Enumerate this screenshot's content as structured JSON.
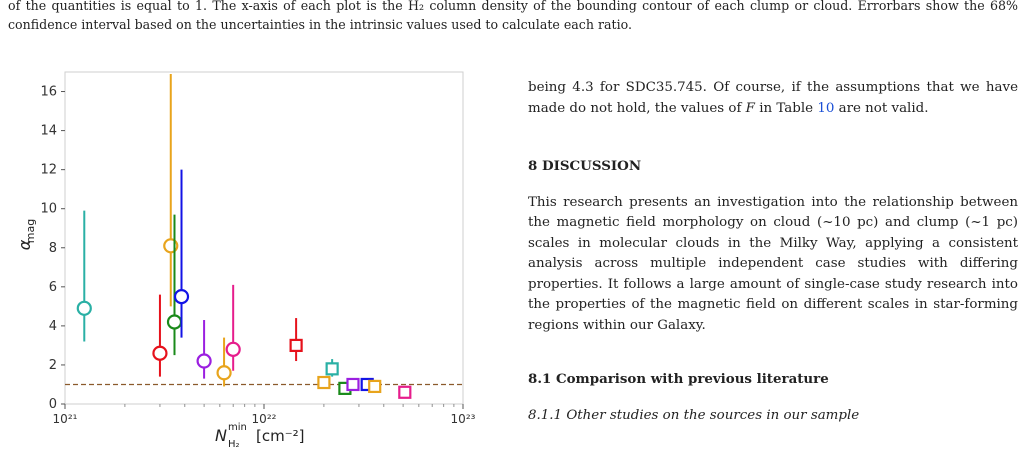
{
  "caption": {
    "text": "of the quantities is equal to 1. The x-axis of each plot is the H₂ column density of the bounding contour of each clump or cloud. Errorbars show the 68% confidence interval based on the uncertainties in the intrinsic values used to calculate each ratio."
  },
  "chart_data": {
    "type": "scatter",
    "xlabel": "N^min_H2 [cm^-2]",
    "ylabel": "α_mag",
    "xscale": "log",
    "xlim": [
      1e+21,
      1e+23
    ],
    "ylim": [
      0,
      17
    ],
    "x_tick_values": [
      1e+21,
      1e+22,
      1e+23
    ],
    "x_ticks": [
      "10²¹",
      "10²²",
      "10²³"
    ],
    "y_ticks": [
      "0",
      "2",
      "4",
      "6",
      "8",
      "10",
      "12",
      "14",
      "16"
    ],
    "reference_line": {
      "y": 1,
      "style": "dashed",
      "color": "#8b5a2b"
    },
    "points": [
      {
        "x": 1.25e+21,
        "y": 4.9,
        "ylo": 3.2,
        "yhi": 9.9,
        "marker": "circle",
        "color": "#2ab0a5"
      },
      {
        "x": 3e+21,
        "y": 2.6,
        "ylo": 1.4,
        "yhi": 5.6,
        "marker": "circle",
        "color": "#e6111b"
      },
      {
        "x": 3.4e+21,
        "y": 8.1,
        "ylo": 5.0,
        "yhi": 16.9,
        "marker": "circle",
        "color": "#e8a41c"
      },
      {
        "x": 3.55e+21,
        "y": 4.2,
        "ylo": 2.5,
        "yhi": 9.7,
        "marker": "circle",
        "color": "#1a8a1a"
      },
      {
        "x": 3.85e+21,
        "y": 5.5,
        "ylo": 3.4,
        "yhi": 12.0,
        "marker": "circle",
        "color": "#1313e6"
      },
      {
        "x": 5e+21,
        "y": 2.2,
        "ylo": 1.3,
        "yhi": 4.3,
        "marker": "circle",
        "color": "#9b1fe0"
      },
      {
        "x": 6.3e+21,
        "y": 1.6,
        "ylo": 0.9,
        "yhi": 3.4,
        "marker": "circle",
        "color": "#e8a41c"
      },
      {
        "x": 7e+21,
        "y": 2.8,
        "ylo": 1.7,
        "yhi": 6.1,
        "marker": "circle",
        "color": "#e61d8c"
      },
      {
        "x": 1.45e+22,
        "y": 3.0,
        "ylo": 2.2,
        "yhi": 4.4,
        "marker": "square",
        "color": "#e6111b"
      },
      {
        "x": 2e+22,
        "y": 1.1,
        "ylo": 0.9,
        "yhi": 1.4,
        "marker": "square",
        "color": "#e8a41c"
      },
      {
        "x": 2.2e+22,
        "y": 1.8,
        "ylo": 1.4,
        "yhi": 2.3,
        "marker": "square",
        "color": "#2ab0a5"
      },
      {
        "x": 2.55e+22,
        "y": 0.8,
        "ylo": 0.6,
        "yhi": 1.0,
        "marker": "square",
        "color": "#1a8a1a"
      },
      {
        "x": 2.8e+22,
        "y": 1.0,
        "ylo": 0.8,
        "yhi": 1.2,
        "marker": "square",
        "color": "#9b1fe0"
      },
      {
        "x": 3.3e+22,
        "y": 1.0,
        "ylo": 0.8,
        "yhi": 1.2,
        "marker": "square",
        "color": "#1313e6"
      },
      {
        "x": 3.6e+22,
        "y": 0.9,
        "ylo": 0.7,
        "yhi": 1.1,
        "marker": "square",
        "color": "#e8a41c"
      },
      {
        "x": 5.1e+22,
        "y": 0.6,
        "ylo": 0.5,
        "yhi": 0.8,
        "marker": "square",
        "color": "#e61d8c"
      }
    ]
  },
  "body": {
    "para1_a": "being 4.3 for SDC35.745. Of course, if the assumptions that we have made do not hold, the values of ",
    "para1_var": "F",
    "para1_b": " in Table ",
    "para1_ref": "10",
    "para1_c": " are not valid.",
    "heading_section": "8 DISCUSSION",
    "para2": "This research presents an investigation into the relationship between the magnetic field morphology on cloud (~10 pc) and clump (~1 pc) scales in molecular clouds in the Milky Way, applying a consistent analysis across multiple independent case studies with differing properties. It follows a large amount of single-case study research into the properties of the magnetic field on different scales in star-forming regions within our Galaxy.",
    "heading_subsection": "8.1 Comparison with previous literature",
    "heading_subsubsection": "8.1.1 Other studies on the sources in our sample"
  }
}
